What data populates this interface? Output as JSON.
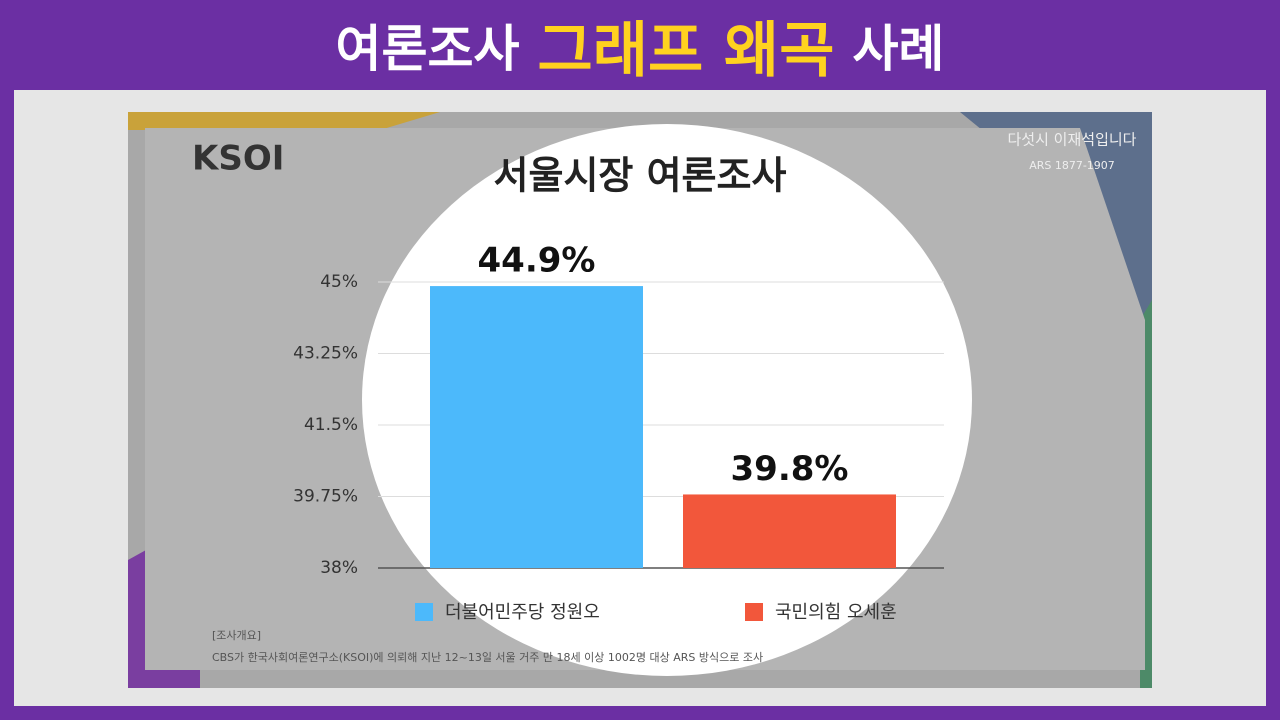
{
  "header": {
    "title_parts": [
      "여론조사",
      "그래프 왜곡",
      "사례"
    ]
  },
  "chart_data": {
    "type": "bar",
    "title": "서울시장 여론조사",
    "logo": "KSOI",
    "watermark": [
      "다섯시 이재석입니다",
      "ARS 1877-1907"
    ],
    "categories": [
      "더불어민주당 정원오",
      "국민의힘 오세훈"
    ],
    "values": [
      44.9,
      39.8
    ],
    "value_labels": [
      "44.9%",
      "39.8%"
    ],
    "colors": [
      "#4cb9fb",
      "#f2573b"
    ],
    "ylim": [
      38,
      45
    ],
    "yticks": [
      {
        "value": 38,
        "label": "38%"
      },
      {
        "value": 39.75,
        "label": "39.75%"
      },
      {
        "value": 41.5,
        "label": "41.5%"
      },
      {
        "value": 43.25,
        "label": "43.25%"
      },
      {
        "value": 45,
        "label": "45%"
      }
    ],
    "grid": true,
    "note": [
      "[조사개요]",
      "CBS가 한국사회여론연구소(KSOI)에 의뢰해 지난 12~13일 서울 거주 만 18세 이상 1002명 대상 ARS 방식으로 조사"
    ]
  }
}
